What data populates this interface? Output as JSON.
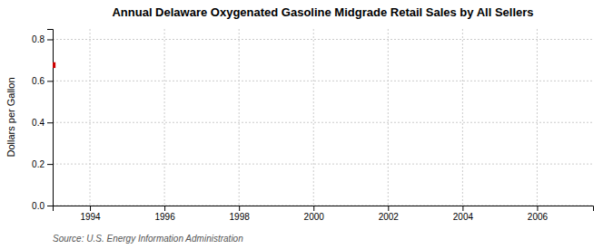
{
  "chart_data": {
    "type": "scatter",
    "title": "Annual Delaware Oxygenated Gasoline Midgrade Retail Sales by All Sellers",
    "ylabel": "Dollars per Gallon",
    "source": "Source: U.S. Energy Information Administration",
    "x": [
      1993.0
    ],
    "values": [
      0.676
    ],
    "color": "#cc0000",
    "marker": "square",
    "xlim": [
      1993.0,
      2007.5
    ],
    "ylim": [
      0.0,
      0.85
    ],
    "xticks": [
      1994,
      1996,
      1998,
      2000,
      2002,
      2004,
      2006
    ],
    "yticks": [
      {
        "value": 0.0,
        "label": "0.0"
      },
      0.2,
      0.4,
      0.6,
      0.8
    ],
    "grid": true
  }
}
